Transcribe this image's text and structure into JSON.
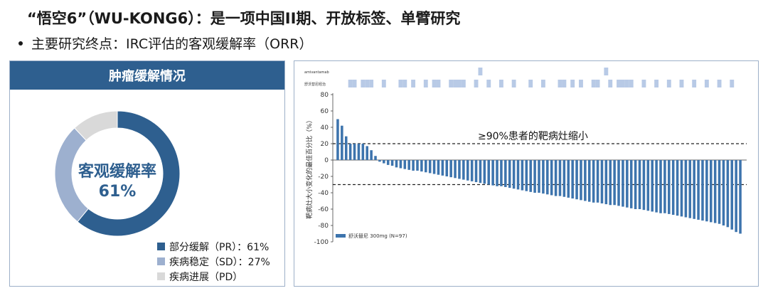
{
  "title": "“悟空6”（WU-KONG6）：是一项中国II期、开放标签、单臂研究",
  "bullet": "主要研究终点：IRC评估的客观缓解率（ORR）",
  "left_panel": {
    "header": "肿瘤缓解情况",
    "center_line1": "客观缓解率",
    "center_line2": "61%",
    "legend": [
      {
        "label": "部分缓解（PR）：61%",
        "color": "#2e5f8f"
      },
      {
        "label": "疾病稳定（SD）：27%",
        "color": "#9db0cf"
      },
      {
        "label": "疾病进展（PD）",
        "color": "#d9d9d9"
      }
    ]
  },
  "colors": {
    "bar": "#3d74ad",
    "mut_box": "#b8cae6",
    "accent": "#2e5f8f"
  },
  "chart_data": [
    {
      "type": "pie",
      "title": "肿瘤缓解情况",
      "categories": [
        "部分缓解（PR）",
        "疾病稳定（SD）",
        "疾病进展（PD）"
      ],
      "values": [
        61,
        27,
        12
      ],
      "donut": true
    },
    {
      "type": "bar",
      "title": "",
      "ylabel": "靶病灶大小变化的最佳百分比（%）",
      "xlabel": "",
      "ylim": [
        -100,
        80
      ],
      "yticks": [
        80,
        60,
        40,
        20,
        0,
        -20,
        -40,
        -60,
        -80,
        -100
      ],
      "reference_lines": [
        20,
        -30
      ],
      "annotation": "≥90%患者的靶病灶缩小",
      "legend": "舒沃替尼 300mg (N=97)",
      "legend_placement": "bottom-left",
      "grid": false,
      "series": [
        {
          "name": "舒沃替尼 300mg (N=97)",
          "values": [
            50,
            42,
            29,
            20,
            20,
            20,
            20,
            17,
            12,
            5,
            -2,
            -4,
            -6,
            -7,
            -9,
            -10,
            -11,
            -12,
            -13,
            -13,
            -14,
            -15,
            -16,
            -17,
            -18,
            -19,
            -20,
            -21,
            -22,
            -23,
            -24,
            -25,
            -26,
            -27,
            -28,
            -29,
            -30,
            -31,
            -32,
            -32,
            -33,
            -34,
            -35,
            -36,
            -37,
            -38,
            -39,
            -40,
            -40,
            -41,
            -42,
            -43,
            -44,
            -44,
            -45,
            -46,
            -47,
            -48,
            -49,
            -50,
            -51,
            -52,
            -52,
            -53,
            -54,
            -55,
            -55,
            -56,
            -57,
            -58,
            -59,
            -60,
            -60,
            -61,
            -62,
            -63,
            -64,
            -65,
            -65,
            -66,
            -67,
            -68,
            -69,
            -70,
            -71,
            -72,
            -73,
            -74,
            -75,
            -76,
            -77,
            -78,
            -80,
            -82,
            -85,
            -88,
            -90
          ]
        }
      ],
      "row_labels": [
        "amivantamab",
        "舒沃替尼经治"
      ]
    }
  ]
}
